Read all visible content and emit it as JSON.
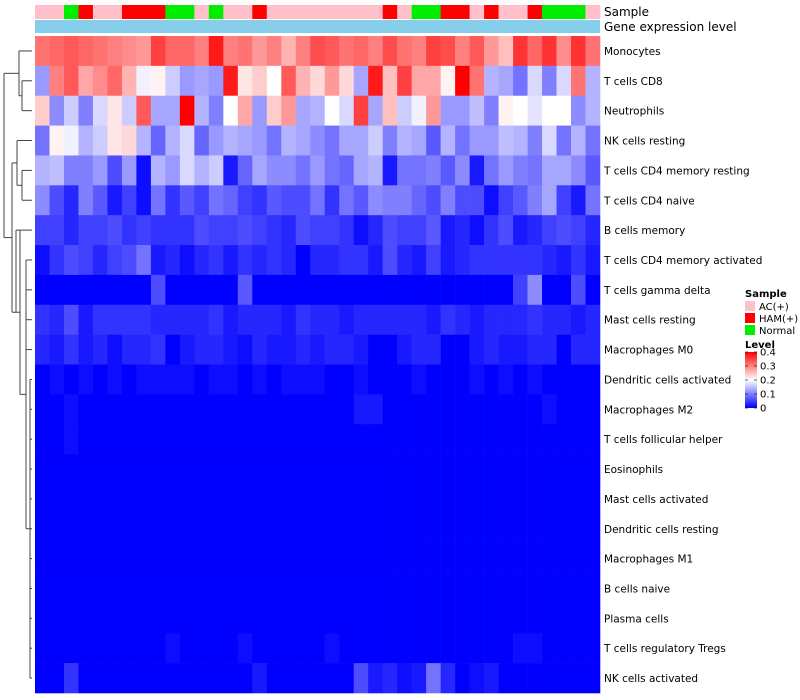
{
  "chart_data": {
    "type": "heatmap",
    "annotation_labels": {
      "sample": "Sample",
      "expression": "Gene expression level"
    },
    "sample_groups": [
      "AC(+)",
      "AC(+)",
      "Normal",
      "HAM(+)",
      "AC(+)",
      "AC(+)",
      "HAM(+)",
      "HAM(+)",
      "HAM(+)",
      "Normal",
      "Normal",
      "AC(+)",
      "Normal",
      "AC(+)",
      "AC(+)",
      "HAM(+)",
      "AC(+)",
      "AC(+)",
      "AC(+)",
      "AC(+)",
      "AC(+)",
      "AC(+)",
      "AC(+)",
      "AC(+)",
      "HAM(+)",
      "AC(+)",
      "Normal",
      "Normal",
      "HAM(+)",
      "HAM(+)",
      "AC(+)",
      "HAM(+)",
      "AC(+)",
      "AC(+)",
      "HAM(+)",
      "Normal",
      "Normal",
      "Normal",
      "AC(+)"
    ],
    "rows": [
      {
        "name": "Monocytes",
        "values": [
          0.31,
          0.32,
          0.33,
          0.32,
          0.31,
          0.3,
          0.29,
          0.28,
          0.35,
          0.32,
          0.32,
          0.3,
          0.38,
          0.3,
          0.31,
          0.28,
          0.3,
          0.26,
          0.3,
          0.34,
          0.33,
          0.31,
          0.32,
          0.3,
          0.34,
          0.31,
          0.3,
          0.35,
          0.34,
          0.3,
          0.33,
          0.28,
          0.25,
          0.36,
          0.32,
          0.36,
          0.29,
          0.36,
          0.31
        ]
      },
      {
        "name": "T cells CD8",
        "values": [
          0.12,
          0.3,
          0.33,
          0.27,
          0.29,
          0.32,
          0.26,
          0.19,
          0.21,
          0.16,
          0.12,
          0.13,
          0.12,
          0.38,
          0.22,
          0.24,
          0.2,
          0.33,
          0.26,
          0.23,
          0.28,
          0.23,
          0.13,
          0.38,
          0.25,
          0.35,
          0.27,
          0.27,
          0.21,
          0.4,
          0.31,
          0.14,
          0.13,
          0.09,
          0.17,
          0.1,
          0.17,
          0.31,
          0.14
        ]
      },
      {
        "name": "Neutrophils",
        "values": [
          0.24,
          0.11,
          0.16,
          0.1,
          0.17,
          0.22,
          0.16,
          0.33,
          0.13,
          0.13,
          0.4,
          0.14,
          0.1,
          0.2,
          0.27,
          0.12,
          0.24,
          0.28,
          0.13,
          0.14,
          0.2,
          0.17,
          0.35,
          0.13,
          0.25,
          0.16,
          0.19,
          0.28,
          0.12,
          0.12,
          0.15,
          0.1,
          0.21,
          0.2,
          0.18,
          0.2,
          0.2,
          0.11,
          0.14
        ]
      },
      {
        "name": "NK cells resting",
        "values": [
          0.09,
          0.21,
          0.19,
          0.14,
          0.16,
          0.22,
          0.23,
          0.14,
          0.08,
          0.14,
          0.17,
          0.08,
          0.12,
          0.14,
          0.13,
          0.12,
          0.09,
          0.14,
          0.13,
          0.11,
          0.09,
          0.13,
          0.13,
          0.16,
          0.1,
          0.14,
          0.13,
          0.07,
          0.14,
          0.09,
          0.12,
          0.12,
          0.15,
          0.14,
          0.1,
          0.17,
          0.09,
          0.14,
          0.09
        ]
      },
      {
        "name": "T cells CD4 memory resting",
        "values": [
          0.14,
          0.15,
          0.1,
          0.1,
          0.12,
          0.06,
          0.12,
          0.01,
          0.14,
          0.12,
          0.17,
          0.14,
          0.16,
          0.02,
          0.08,
          0.13,
          0.11,
          0.11,
          0.09,
          0.12,
          0.09,
          0.08,
          0.13,
          0.14,
          0.02,
          0.09,
          0.09,
          0.1,
          0.07,
          0.11,
          0.02,
          0.09,
          0.12,
          0.1,
          0.09,
          0.13,
          0.13,
          0.11,
          0.07
        ]
      },
      {
        "name": "T cells CD4 naive",
        "values": [
          0.11,
          0.06,
          0.03,
          0.1,
          0.07,
          0.02,
          0.05,
          0.01,
          0.09,
          0.04,
          0.07,
          0.05,
          0.09,
          0.08,
          0.05,
          0.04,
          0.07,
          0.06,
          0.06,
          0.09,
          0.04,
          0.09,
          0.07,
          0.11,
          0.1,
          0.1,
          0.08,
          0.06,
          0.1,
          0.06,
          0.06,
          0.01,
          0.05,
          0.07,
          0.1,
          0.13,
          0.05,
          0.02,
          0.09
        ]
      },
      {
        "name": "B cells memory",
        "values": [
          0.05,
          0.05,
          0.03,
          0.05,
          0.05,
          0.06,
          0.04,
          0.05,
          0.04,
          0.04,
          0.04,
          0.06,
          0.05,
          0.05,
          0.06,
          0.05,
          0.04,
          0.03,
          0.06,
          0.05,
          0.05,
          0.04,
          0.01,
          0.03,
          0.06,
          0.05,
          0.05,
          0.07,
          0.02,
          0.03,
          0.01,
          0.04,
          0.06,
          0.02,
          0.03,
          0.05,
          0.06,
          0.05,
          0.03
        ]
      },
      {
        "name": "T cells CD4 memory activated",
        "values": [
          0.01,
          0.04,
          0.06,
          0.05,
          0.03,
          0.05,
          0.06,
          0.09,
          0.02,
          0.03,
          0.01,
          0.03,
          0.04,
          0.02,
          0.04,
          0.03,
          0.04,
          0.03,
          0.0,
          0.03,
          0.03,
          0.04,
          0.04,
          0.02,
          0.06,
          0.03,
          0.02,
          0.05,
          0.02,
          0.03,
          0.04,
          0.04,
          0.04,
          0.04,
          0.04,
          0.03,
          0.02,
          0.04,
          0.02
        ]
      },
      {
        "name": "T cells gamma delta",
        "values": [
          0.0,
          0.0,
          0.0,
          0.0,
          0.0,
          0.0,
          0.0,
          0.0,
          0.06,
          0.0,
          0.0,
          0.0,
          0.0,
          0.0,
          0.07,
          0.0,
          0.0,
          0.0,
          0.0,
          0.0,
          0.0,
          0.0,
          0.0,
          0.0,
          0.0,
          0.0,
          0.0,
          0.0,
          0.0,
          0.0,
          0.0,
          0.0,
          0.0,
          0.05,
          0.11,
          0.0,
          0.0,
          0.06,
          0.0
        ]
      },
      {
        "name": "Mast cells resting",
        "values": [
          0.04,
          0.03,
          0.06,
          0.02,
          0.04,
          0.04,
          0.04,
          0.04,
          0.03,
          0.03,
          0.03,
          0.03,
          0.04,
          0.02,
          0.03,
          0.03,
          0.03,
          0.02,
          0.04,
          0.03,
          0.03,
          0.02,
          0.03,
          0.03,
          0.03,
          0.03,
          0.03,
          0.02,
          0.04,
          0.03,
          0.02,
          0.03,
          0.03,
          0.03,
          0.04,
          0.03,
          0.03,
          0.02,
          0.03
        ]
      },
      {
        "name": "Macrophages M0",
        "values": [
          0.03,
          0.02,
          0.04,
          0.02,
          0.03,
          0.01,
          0.03,
          0.03,
          0.04,
          0.0,
          0.02,
          0.03,
          0.03,
          0.02,
          0.01,
          0.03,
          0.02,
          0.02,
          0.03,
          0.02,
          0.03,
          0.03,
          0.02,
          0.0,
          0.0,
          0.02,
          0.03,
          0.03,
          0.0,
          0.0,
          0.02,
          0.03,
          0.02,
          0.02,
          0.03,
          0.03,
          0.0,
          0.03,
          0.03
        ]
      },
      {
        "name": "Dendritic cells activated",
        "values": [
          0.0,
          0.01,
          0.0,
          0.01,
          0.0,
          0.01,
          0.0,
          0.01,
          0.01,
          0.01,
          0.01,
          0.0,
          0.01,
          0.01,
          0.0,
          0.01,
          0.0,
          0.01,
          0.01,
          0.01,
          0.0,
          0.0,
          0.01,
          0.0,
          0.0,
          0.0,
          0.01,
          0.0,
          0.0,
          0.0,
          0.01,
          0.0,
          0.01,
          0.0,
          0.01,
          0.0,
          0.0,
          0.0,
          0.0
        ]
      },
      {
        "name": "Macrophages M2",
        "values": [
          0.0,
          0.0,
          0.01,
          0.0,
          0.0,
          0.0,
          0.0,
          0.0,
          0.0,
          0.0,
          0.0,
          0.0,
          0.0,
          0.0,
          0.0,
          0.0,
          0.0,
          0.0,
          0.0,
          0.0,
          0.0,
          0.0,
          0.02,
          0.02,
          0.0,
          0.0,
          0.0,
          0.0,
          0.0,
          0.0,
          0.0,
          0.0,
          0.0,
          0.0,
          0.0,
          0.01,
          0.0,
          0.0,
          0.0
        ]
      },
      {
        "name": "T cells follicular helper",
        "values": [
          0.0,
          0.0,
          0.01,
          0.0,
          0.0,
          0.0,
          0.0,
          0.0,
          0.0,
          0.0,
          0.0,
          0.0,
          0.0,
          0.0,
          0.0,
          0.0,
          0.0,
          0.0,
          0.0,
          0.0,
          0.0,
          0.0,
          0.0,
          0.0,
          0.0,
          0.0,
          0.0,
          0.0,
          0.0,
          0.0,
          0.0,
          0.0,
          0.0,
          0.0,
          0.0,
          0.0,
          0.0,
          0.0,
          0.0
        ]
      },
      {
        "name": "Eosinophils",
        "values": [
          0.0,
          0.0,
          0.0,
          0.0,
          0.0,
          0.0,
          0.0,
          0.0,
          0.0,
          0.0,
          0.0,
          0.0,
          0.0,
          0.0,
          0.0,
          0.0,
          0.0,
          0.0,
          0.0,
          0.0,
          0.0,
          0.0,
          0.0,
          0.0,
          0.0,
          0.0,
          0.0,
          0.0,
          0.0,
          0.0,
          0.0,
          0.0,
          0.0,
          0.0,
          0.0,
          0.0,
          0.0,
          0.0,
          0.0
        ]
      },
      {
        "name": "Mast cells activated",
        "values": [
          0.0,
          0.0,
          0.0,
          0.0,
          0.0,
          0.0,
          0.0,
          0.0,
          0.0,
          0.0,
          0.0,
          0.0,
          0.0,
          0.0,
          0.0,
          0.0,
          0.0,
          0.0,
          0.0,
          0.0,
          0.0,
          0.0,
          0.0,
          0.0,
          0.0,
          0.0,
          0.0,
          0.0,
          0.0,
          0.0,
          0.0,
          0.0,
          0.0,
          0.0,
          0.0,
          0.0,
          0.0,
          0.0,
          0.0
        ]
      },
      {
        "name": "Dendritic cells resting",
        "values": [
          0.0,
          0.0,
          0.0,
          0.0,
          0.0,
          0.0,
          0.0,
          0.0,
          0.0,
          0.0,
          0.0,
          0.0,
          0.0,
          0.0,
          0.0,
          0.0,
          0.0,
          0.0,
          0.0,
          0.0,
          0.0,
          0.0,
          0.0,
          0.0,
          0.0,
          0.0,
          0.0,
          0.0,
          0.0,
          0.0,
          0.0,
          0.0,
          0.0,
          0.0,
          0.0,
          0.0,
          0.0,
          0.0,
          0.0
        ]
      },
      {
        "name": "Macrophages M1",
        "values": [
          0.0,
          0.0,
          0.0,
          0.0,
          0.0,
          0.0,
          0.0,
          0.0,
          0.0,
          0.0,
          0.0,
          0.0,
          0.0,
          0.0,
          0.0,
          0.0,
          0.0,
          0.0,
          0.0,
          0.0,
          0.0,
          0.0,
          0.0,
          0.0,
          0.0,
          0.0,
          0.0,
          0.0,
          0.0,
          0.0,
          0.0,
          0.0,
          0.0,
          0.0,
          0.0,
          0.0,
          0.0,
          0.0,
          0.0
        ]
      },
      {
        "name": "B cells naive",
        "values": [
          0.0,
          0.0,
          0.0,
          0.0,
          0.0,
          0.0,
          0.0,
          0.0,
          0.0,
          0.0,
          0.0,
          0.0,
          0.0,
          0.0,
          0.0,
          0.0,
          0.0,
          0.0,
          0.0,
          0.0,
          0.0,
          0.0,
          0.0,
          0.0,
          0.0,
          0.0,
          0.0,
          0.0,
          0.0,
          0.0,
          0.0,
          0.0,
          0.0,
          0.0,
          0.0,
          0.0,
          0.0,
          0.0,
          0.0
        ]
      },
      {
        "name": "Plasma cells",
        "values": [
          0.0,
          0.0,
          0.0,
          0.0,
          0.0,
          0.0,
          0.0,
          0.0,
          0.0,
          0.0,
          0.0,
          0.0,
          0.0,
          0.0,
          0.0,
          0.0,
          0.0,
          0.0,
          0.0,
          0.0,
          0.0,
          0.0,
          0.0,
          0.0,
          0.0,
          0.0,
          0.0,
          0.0,
          0.0,
          0.0,
          0.0,
          0.0,
          0.0,
          0.0,
          0.0,
          0.0,
          0.0,
          0.0,
          0.0
        ]
      },
      {
        "name": "T cells regulatory  Tregs",
        "values": [
          0.0,
          0.0,
          0.0,
          0.0,
          0.0,
          0.0,
          0.0,
          0.0,
          0.0,
          0.01,
          0.0,
          0.0,
          0.0,
          0.0,
          0.01,
          0.0,
          0.0,
          0.0,
          0.0,
          0.0,
          0.01,
          0.0,
          0.0,
          0.0,
          0.0,
          0.0,
          0.0,
          0.0,
          0.0,
          0.0,
          0.0,
          0.0,
          0.0,
          0.01,
          0.01,
          0.0,
          0.0,
          0.0,
          0.0
        ]
      },
      {
        "name": "NK cells activated",
        "values": [
          0.0,
          0.0,
          0.04,
          0.0,
          0.0,
          0.0,
          0.0,
          0.0,
          0.0,
          0.0,
          0.0,
          0.0,
          0.0,
          0.0,
          0.0,
          0.02,
          0.0,
          0.0,
          0.0,
          0.0,
          0.0,
          0.0,
          0.06,
          0.02,
          0.03,
          0.01,
          0.02,
          0.09,
          0.03,
          0.0,
          0.01,
          0.02,
          0.0,
          0.0,
          0.0,
          0.0,
          0.0,
          0.0,
          0.0
        ]
      }
    ],
    "value_range": [
      0,
      0.4
    ],
    "legend_sample": {
      "title": "Sample",
      "entries": [
        {
          "label": "AC(+)",
          "color": "#FFC0CB"
        },
        {
          "label": "HAM(+)",
          "color": "#FF0000"
        },
        {
          "label": "Normal",
          "color": "#00EE00"
        }
      ]
    },
    "legend_level": {
      "title": "Level",
      "ticks": [
        {
          "label": "0.4",
          "value": 0.4
        },
        {
          "label": "0.3",
          "value": 0.3
        },
        {
          "label": "0.2",
          "value": 0.2
        },
        {
          "label": "0.1",
          "value": 0.1
        },
        {
          "label": "0",
          "value": 0
        }
      ]
    },
    "colors": {
      "low": "#0000FF",
      "mid": "#FFFFFF",
      "high": "#FF0000",
      "expression_bar": "#87CEEB",
      "dendrogram": "#444444"
    }
  }
}
